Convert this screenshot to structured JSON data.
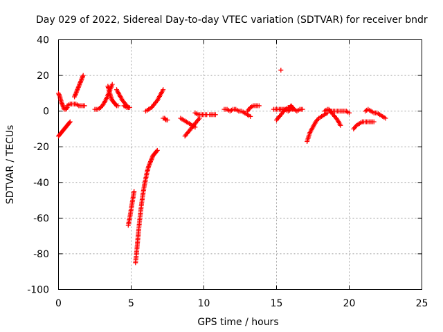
{
  "chart_data": {
    "type": "scatter",
    "title": "Day 029 of 2022, Sidereal Day-to-day VTEC variation (SDTVAR) for receiver bndr",
    "xlabel": "GPS time / hours",
    "ylabel": "SDTVAR / TECUs",
    "xlim": [
      0,
      25
    ],
    "ylim": [
      -100,
      40
    ],
    "xticks": [
      0,
      5,
      10,
      15,
      20,
      25
    ],
    "yticks": [
      -100,
      -80,
      -60,
      -40,
      -20,
      0,
      20,
      40
    ],
    "x_tick_labels": [
      "0",
      "5",
      "10",
      "15",
      "20",
      "25"
    ],
    "y_tick_labels": [
      "-100",
      "-80",
      "-60",
      "-40",
      "-20",
      "0",
      "20",
      "40"
    ],
    "grid": true,
    "marker": "plus",
    "color": "#ff0000",
    "segments": [
      {
        "x": [
          0.0,
          0.1,
          0.2,
          0.3,
          0.4,
          0.5,
          0.6,
          0.7,
          0.8
        ],
        "y": [
          -14,
          -13,
          -12,
          -11,
          -10,
          -9,
          -8,
          -7,
          -6
        ]
      },
      {
        "x": [
          0.0,
          0.1,
          0.2,
          0.3,
          0.4,
          0.5,
          0.6
        ],
        "y": [
          10,
          8,
          5,
          3,
          1,
          1,
          2
        ]
      },
      {
        "x": [
          0.6,
          0.8,
          1.0,
          1.2,
          1.4,
          1.6,
          1.8
        ],
        "y": [
          3,
          4,
          4,
          4,
          3,
          3,
          3
        ]
      },
      {
        "x": [
          1.1,
          1.2,
          1.3,
          1.4,
          1.5,
          1.6,
          1.7
        ],
        "y": [
          8,
          10,
          12,
          14,
          16,
          18,
          20
        ]
      },
      {
        "x": [
          2.5,
          2.7,
          2.9,
          3.1,
          3.3,
          3.5,
          3.7
        ],
        "y": [
          1,
          1,
          2,
          4,
          7,
          11,
          15
        ]
      },
      {
        "x": [
          3.4,
          3.5,
          3.6,
          3.7,
          3.8,
          3.9,
          4.0,
          4.1
        ],
        "y": [
          14,
          11,
          8,
          6,
          5,
          4,
          3,
          3
        ]
      },
      {
        "x": [
          4.0,
          4.2,
          4.4,
          4.6,
          4.8
        ],
        "y": [
          12,
          9,
          6,
          4,
          2
        ]
      },
      {
        "x": [
          4.5,
          4.7,
          4.9
        ],
        "y": [
          3,
          2,
          2
        ]
      },
      {
        "x": [
          4.8,
          4.9,
          5.0,
          5.1,
          5.2
        ],
        "y": [
          -64,
          -60,
          -55,
          -50,
          -45
        ]
      },
      {
        "x": [
          5.3,
          5.4,
          5.5,
          5.6,
          5.7,
          5.8,
          5.9,
          6.0,
          6.1,
          6.2,
          6.3,
          6.4,
          6.5,
          6.6,
          6.7,
          6.8
        ],
        "y": [
          -85,
          -77,
          -68,
          -60,
          -53,
          -47,
          -42,
          -38,
          -34,
          -31,
          -29,
          -27,
          -25,
          -24,
          -23,
          -22
        ]
      },
      {
        "x": [
          6.0,
          6.2,
          6.4,
          6.6,
          6.8,
          7.0,
          7.2
        ],
        "y": [
          0,
          1,
          2,
          4,
          6,
          9,
          12
        ]
      },
      {
        "x": [
          7.2,
          7.3,
          7.4,
          7.5
        ],
        "y": [
          -4,
          -4,
          -5,
          -5
        ]
      },
      {
        "x": [
          8.4,
          8.6,
          8.8,
          9.0,
          9.2,
          9.4
        ],
        "y": [
          -4,
          -5,
          -6,
          -7,
          -8,
          -9
        ]
      },
      {
        "x": [
          8.7,
          8.9,
          9.1,
          9.3,
          9.5,
          9.7
        ],
        "y": [
          -14,
          -12,
          -10,
          -8,
          -6,
          -4
        ]
      },
      {
        "x": [
          9.4,
          9.6,
          9.8,
          10.0,
          10.2
        ],
        "y": [
          -1,
          -2,
          -2,
          -2,
          -2
        ]
      },
      {
        "x": [
          10.4,
          10.6,
          10.8
        ],
        "y": [
          -2,
          -2,
          -2
        ]
      },
      {
        "x": [
          11.4,
          11.6,
          11.8,
          12.0,
          12.2,
          12.4,
          12.6,
          12.8,
          13.0,
          13.2
        ],
        "y": [
          1,
          1,
          0,
          1,
          1,
          0,
          0,
          -1,
          -2,
          -3
        ]
      },
      {
        "x": [
          13.0,
          13.2,
          13.4,
          13.6,
          13.8
        ],
        "y": [
          0,
          2,
          3,
          3,
          3
        ]
      },
      {
        "x": [
          14.8,
          15.0,
          15.2,
          15.4,
          15.6
        ],
        "y": [
          1,
          1,
          1,
          1,
          1
        ]
      },
      {
        "x": [
          15.0,
          15.2,
          15.4,
          15.6,
          15.8
        ],
        "y": [
          -5,
          -3,
          -1,
          1,
          2
        ]
      },
      {
        "x": [
          15.2,
          15.4,
          15.6,
          15.8,
          16.0,
          16.2,
          16.4,
          16.6,
          16.8
        ],
        "y": [
          1,
          1,
          1,
          0,
          1,
          1,
          0,
          1,
          1
        ]
      },
      {
        "x": [
          15.9,
          16.0,
          16.1,
          16.2
        ],
        "y": [
          2,
          3,
          2,
          1
        ]
      },
      {
        "x": [
          17.1,
          17.3,
          17.5,
          17.7,
          17.9,
          18.1,
          18.3,
          18.5
        ],
        "y": [
          -17,
          -12,
          -9,
          -6,
          -4,
          -3,
          -2,
          -1
        ]
      },
      {
        "x": [
          18.3,
          18.5,
          18.7,
          18.9,
          19.1,
          19.3
        ],
        "y": [
          0,
          1,
          0,
          0,
          0,
          0
        ]
      },
      {
        "x": [
          18.6,
          18.8,
          19.0,
          19.2,
          19.4
        ],
        "y": [
          1,
          -1,
          -3,
          -5,
          -8
        ]
      },
      {
        "x": [
          19.4,
          19.6,
          19.8,
          20.0
        ],
        "y": [
          0,
          0,
          0,
          -1
        ]
      },
      {
        "x": [
          20.3,
          20.5,
          20.7,
          20.9,
          21.1,
          21.3,
          21.5,
          21.7
        ],
        "y": [
          -10,
          -8,
          -7,
          -6,
          -6,
          -6,
          -6,
          -6
        ]
      },
      {
        "x": [
          21.1,
          21.3,
          21.5,
          21.7,
          21.9,
          22.1,
          22.3,
          22.5
        ],
        "y": [
          0,
          1,
          0,
          -1,
          -1,
          -2,
          -3,
          -4
        ]
      },
      {
        "x": [
          15.3
        ],
        "y": [
          23
        ]
      }
    ]
  }
}
